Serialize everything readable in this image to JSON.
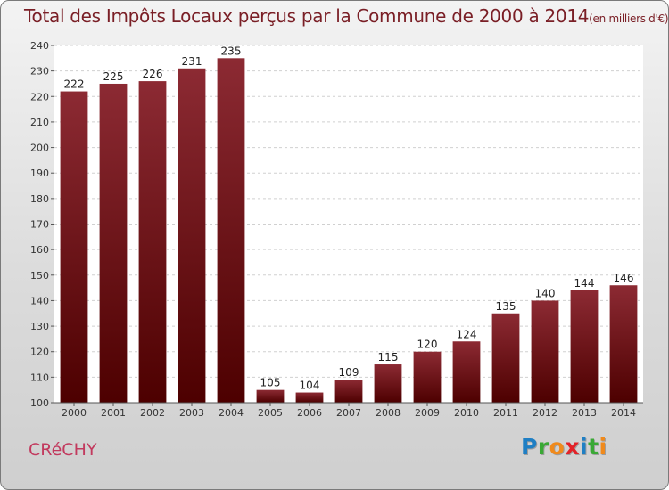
{
  "header": {
    "title": "Total des Impôts Locaux perçus par la Commune de 2000 à 2014",
    "unit": "(en milliers d'€)"
  },
  "footer": {
    "commune": "CRéCHY",
    "logo_letters": [
      "P",
      "r",
      "o",
      "x",
      "i",
      "t",
      "i"
    ],
    "logo_colors": [
      "#1f7fc4",
      "#3aa935",
      "#f08a1c",
      "#e32228",
      "#1f7fc4",
      "#3aa935",
      "#f08a1c"
    ]
  },
  "colors": {
    "bar_top": "#8c2a33",
    "bar_bottom": "#4d0000",
    "title": "#7a1f26",
    "commune": "#c23a5e"
  },
  "chart_data": {
    "type": "bar",
    "title": "Total des Impôts Locaux perçus par la Commune de 2000 à 2014",
    "subtitle": "(en milliers d'€)",
    "categories": [
      "2000",
      "2001",
      "2002",
      "2003",
      "2004",
      "2005",
      "2006",
      "2007",
      "2008",
      "2009",
      "2010",
      "2011",
      "2012",
      "2013",
      "2014"
    ],
    "values": [
      222,
      225,
      226,
      231,
      235,
      105,
      104,
      109,
      115,
      120,
      124,
      135,
      140,
      144,
      146
    ],
    "ylim": [
      100,
      240
    ],
    "yticks": [
      100,
      110,
      120,
      130,
      140,
      150,
      160,
      170,
      180,
      190,
      200,
      210,
      220,
      230,
      240
    ],
    "grid": true,
    "data_labels": true
  }
}
